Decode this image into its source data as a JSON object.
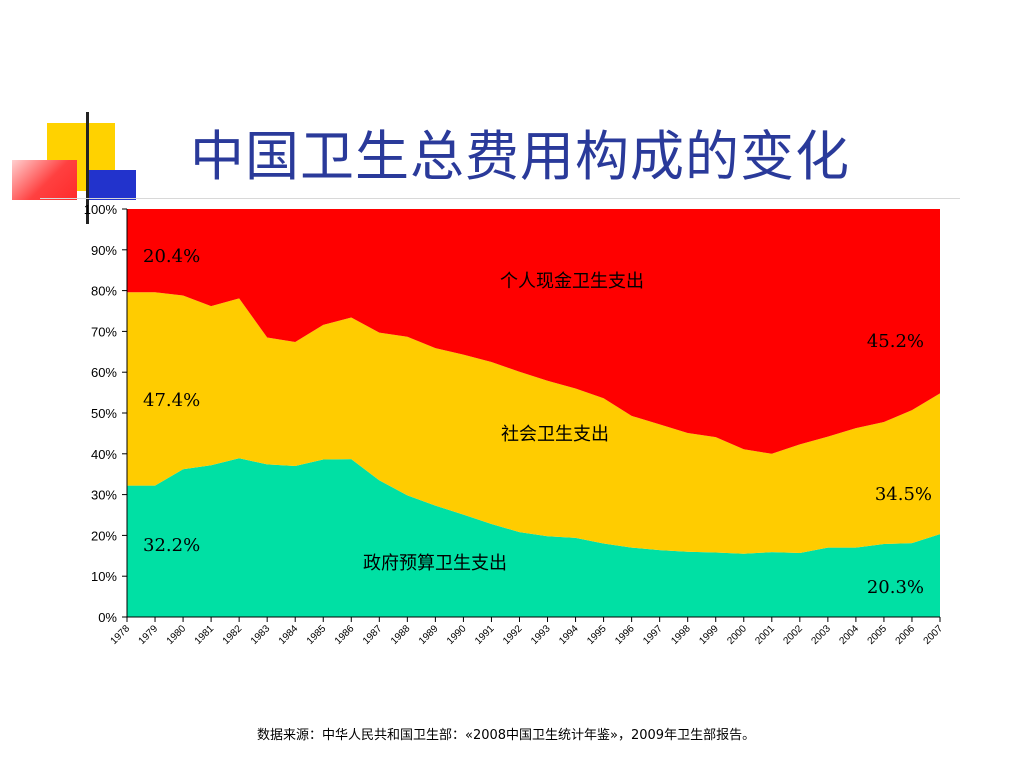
{
  "slide": {
    "title": "中国卫生总费用构成的变化",
    "source_note": "数据来源：中华人民共和国卫生部：«2008中国卫生统计年鉴»，2009年卫生部报告。"
  },
  "colors": {
    "title": "#2a3a9a",
    "government": "#00e0a4",
    "social": "#ffcc00",
    "out_of_pocket": "#ff0000",
    "deco_yellow": "#ffd200",
    "deco_blue": "#2233cc",
    "deco_red": "#ff3a3a"
  },
  "chart_data": {
    "type": "area",
    "stacked": true,
    "percent": true,
    "x": [
      "1978",
      "1979",
      "1980",
      "1981",
      "1982",
      "1983",
      "1984",
      "1985",
      "1986",
      "1987",
      "1988",
      "1989",
      "1990",
      "1991",
      "1992",
      "1993",
      "1994",
      "1995",
      "1996",
      "1997",
      "1998",
      "1999",
      "2000",
      "2001",
      "2002",
      "2003",
      "2004",
      "2005",
      "2006",
      "2007"
    ],
    "yticks": [
      "0%",
      "10%",
      "20%",
      "30%",
      "40%",
      "50%",
      "60%",
      "70%",
      "80%",
      "90%",
      "100%"
    ],
    "ylim": [
      0,
      100
    ],
    "series": [
      {
        "name": "政府预算卫生支出",
        "key": "government",
        "values": [
          32.2,
          32.2,
          36.2,
          37.2,
          38.9,
          37.4,
          37.0,
          38.6,
          38.7,
          33.5,
          29.8,
          27.3,
          25.1,
          22.8,
          20.8,
          19.8,
          19.4,
          18.0,
          17.0,
          16.4,
          16.0,
          15.8,
          15.5,
          15.9,
          15.7,
          17.0,
          17.0,
          17.9,
          18.1,
          20.3
        ]
      },
      {
        "name": "社会卫生支出",
        "key": "social",
        "values": [
          47.4,
          47.4,
          42.6,
          39.0,
          39.2,
          31.1,
          30.4,
          33.0,
          34.7,
          36.2,
          38.9,
          38.6,
          39.2,
          39.7,
          39.3,
          38.1,
          36.6,
          35.6,
          32.3,
          30.8,
          29.1,
          28.3,
          25.6,
          24.1,
          26.6,
          27.2,
          29.3,
          29.9,
          32.6,
          34.5
        ]
      },
      {
        "name": "个人现金卫生支出",
        "key": "out_of_pocket",
        "values": [
          20.4,
          20.4,
          21.2,
          23.8,
          21.9,
          31.5,
          32.6,
          28.4,
          26.6,
          30.3,
          31.3,
          34.1,
          35.7,
          37.5,
          39.9,
          42.1,
          44.0,
          46.4,
          50.7,
          52.8,
          54.9,
          55.9,
          58.9,
          60.0,
          57.7,
          55.8,
          53.7,
          52.2,
          49.3,
          45.2
        ]
      }
    ],
    "annotations": [
      {
        "text": "20.4%",
        "kind": "value"
      },
      {
        "text": "47.4%",
        "kind": "value"
      },
      {
        "text": "32.2%",
        "kind": "value"
      },
      {
        "text": "45.2%",
        "kind": "value"
      },
      {
        "text": "34.5%",
        "kind": "value"
      },
      {
        "text": "20.3%",
        "kind": "value"
      },
      {
        "text": "个人现金卫生支出",
        "kind": "series-label"
      },
      {
        "text": "社会卫生支出",
        "kind": "series-label"
      },
      {
        "text": "政府预算卫生支出",
        "kind": "series-label"
      }
    ]
  }
}
